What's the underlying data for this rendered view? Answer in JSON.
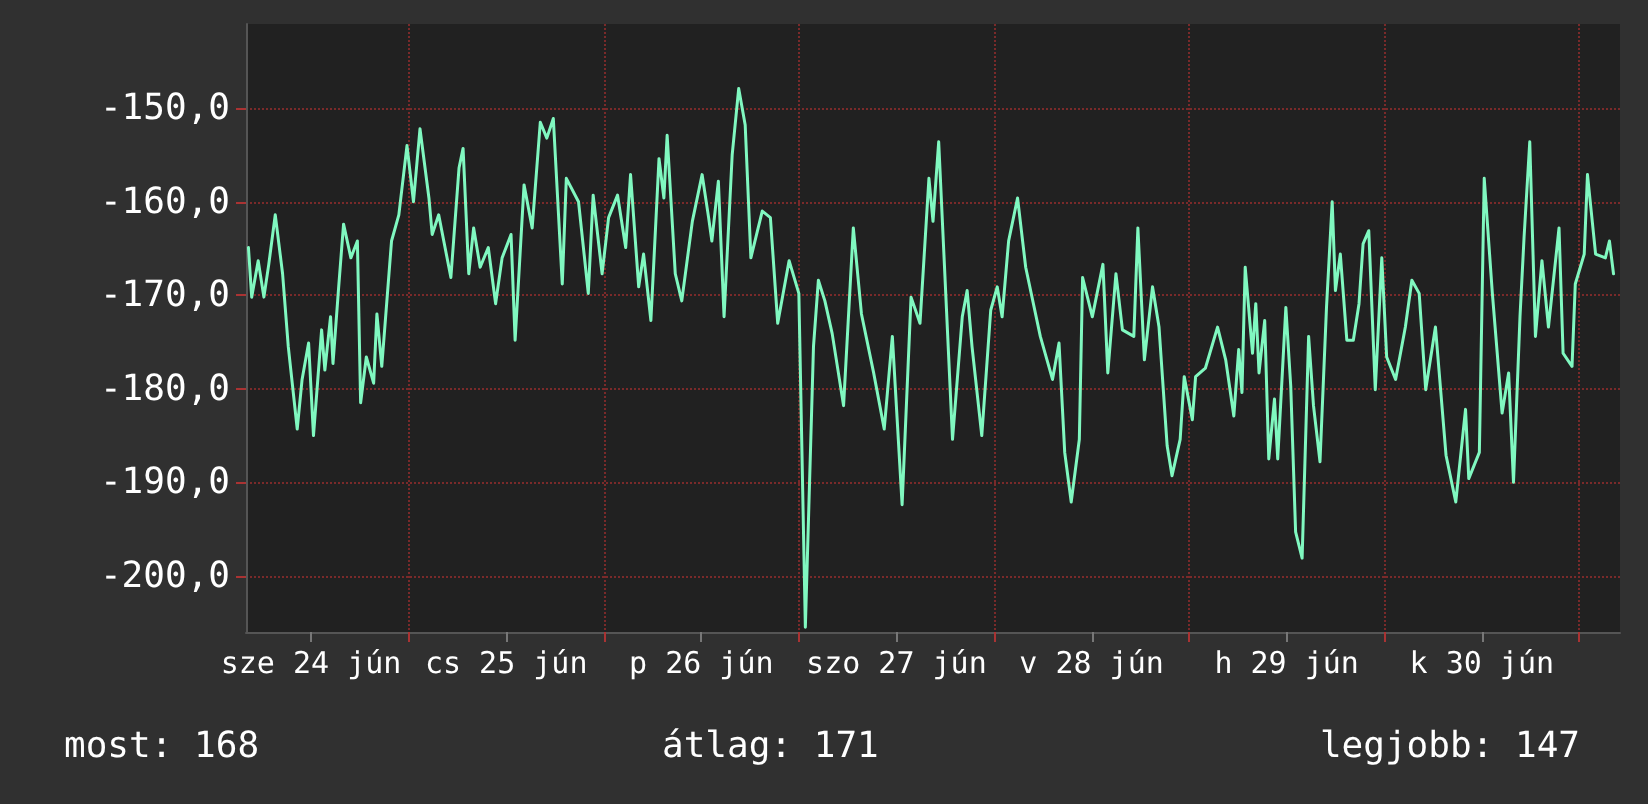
{
  "chart_data": {
    "type": "line",
    "annotations": [
      "most: 168",
      "átlag: 171",
      "legjobb: 147"
    ],
    "xlim": [
      "--06-24T04:00",
      "--07-01T05:00"
    ],
    "ylim": [
      -206,
      -141
    ],
    "xticks": [
      {
        "value": "--06-24T12:00",
        "label": "sze 24 jún"
      },
      {
        "value": "--06-25T00:00",
        "label": null
      },
      {
        "value": "--06-25T12:00",
        "label": "cs 25 jún"
      },
      {
        "value": "--06-26T00:00",
        "label": null
      },
      {
        "value": "--06-26T12:00",
        "label": "p 26 jún"
      },
      {
        "value": "--06-27T00:00",
        "label": null
      },
      {
        "value": "--06-27T12:00",
        "label": "szo 27 jún"
      },
      {
        "value": "--06-28T00:00",
        "label": null
      },
      {
        "value": "--06-28T12:00",
        "label": "v 28 jún"
      },
      {
        "value": "--06-29T00:00",
        "label": null
      },
      {
        "value": "--06-29T12:00",
        "label": "h 29 jún"
      },
      {
        "value": "--06-30T00:00",
        "label": null
      },
      {
        "value": "--06-30T12:00",
        "label": "k 30 jún"
      },
      {
        "value": "--07-01T00:00",
        "label": null
      }
    ],
    "yticks": [
      {
        "value": -150,
        "label": "-150,0"
      },
      {
        "value": -160,
        "label": "-160,0"
      },
      {
        "value": -170,
        "label": "-170,0"
      },
      {
        "value": -180,
        "label": "-180,0"
      },
      {
        "value": -190,
        "label": "-190,0"
      },
      {
        "value": -200,
        "label": "-200,0"
      }
    ],
    "grid": true,
    "marker": "none",
    "line_style": "solid",
    "series": [
      {
        "color": "#80f8c0",
        "x": [
          "--06-24T04:18",
          "--06-24T04:42",
          "--06-24T05:30",
          "--06-24T06:12",
          "--06-24T06:48",
          "--06-24T07:36",
          "--06-24T08:30",
          "--06-24T09:12",
          "--06-24T10:18",
          "--06-24T10:54",
          "--06-24T11:42",
          "--06-24T12:18",
          "--06-24T13:18",
          "--06-24T13:42",
          "--06-24T14:24",
          "--06-24T14:42",
          "--06-24T15:24",
          "--06-24T16:00",
          "--06-24T16:54",
          "--06-24T17:42",
          "--06-24T18:06",
          "--06-24T18:48",
          "--06-24T19:42",
          "--06-24T20:06",
          "--06-24T20:42",
          "--06-24T21:54",
          "--06-24T22:48",
          "--06-24T23:48",
          "--06-25T00:36",
          "--06-25T01:24",
          "--06-25T02:30",
          "--06-25T02:54",
          "--06-25T03:42",
          "--06-25T05:12",
          "--06-25T06:12",
          "--06-25T06:42",
          "--06-25T07:24",
          "--06-25T08:00",
          "--06-25T08:48",
          "--06-25T09:48",
          "--06-25T10:42",
          "--06-25T11:30",
          "--06-25T12:36",
          "--06-25T13:06",
          "--06-25T14:12",
          "--06-25T15:12",
          "--06-25T16:12",
          "--06-25T17:00",
          "--06-25T17:48",
          "--06-25T18:54",
          "--06-25T19:24",
          "--06-25T20:54",
          "--06-25T22:06",
          "--06-25T22:42",
          "--06-25T23:48",
          "--06-26T00:36",
          "--06-26T01:42",
          "--06-26T02:42",
          "--06-26T03:18",
          "--06-26T04:18",
          "--06-26T04:54",
          "--06-26T05:48",
          "--06-26T06:48",
          "--06-26T07:24",
          "--06-26T07:48",
          "--06-26T08:48",
          "--06-26T09:36",
          "--06-26T10:54",
          "--06-26T12:06",
          "--06-26T12:54",
          "--06-26T13:18",
          "--06-26T14:06",
          "--06-26T14:48",
          "--06-26T15:48",
          "--06-26T16:36",
          "--06-26T17:24",
          "--06-26T18:06",
          "--06-26T19:30",
          "--06-26T20:30",
          "--06-26T21:24",
          "--06-26T22:48",
          "--06-27T00:00",
          "--06-27T00:48",
          "--06-27T01:48",
          "--06-27T02:24",
          "--06-27T03:12",
          "--06-27T04:06",
          "--06-27T05:30",
          "--06-27T06:42",
          "--06-27T07:42",
          "--06-27T09:12",
          "--06-27T10:30",
          "--06-27T11:30",
          "--06-27T12:42",
          "--06-27T13:48",
          "--06-27T14:54",
          "--06-27T16:00",
          "--06-27T16:30",
          "--06-27T17:12",
          "--06-27T18:54",
          "--06-27T20:06",
          "--06-27T20:42",
          "--06-27T21:18",
          "--06-27T22:30",
          "--06-27T23:36",
          "--06-28T00:24",
          "--06-28T01:00",
          "--06-28T01:48",
          "--06-28T02:54",
          "--06-28T03:54",
          "--06-28T05:42",
          "--06-28T07:12",
          "--06-28T08:00",
          "--06-28T08:42",
          "--06-28T09:30",
          "--06-28T10:30",
          "--06-28T10:54",
          "--06-28T12:06",
          "--06-28T13:24",
          "--06-28T14:00",
          "--06-28T15:00",
          "--06-28T15:48",
          "--06-28T17:12",
          "--06-28T17:42",
          "--06-28T18:30",
          "--06-28T19:30",
          "--06-28T20:18",
          "--06-28T21:18",
          "--06-28T21:54",
          "--06-28T22:54",
          "--06-28T23:24",
          "--06-29T00:24",
          "--06-29T00:48",
          "--06-29T02:00",
          "--06-29T03:30",
          "--06-29T04:30",
          "--06-29T05:30",
          "--06-29T06:06",
          "--06-29T06:30",
          "--06-29T06:54",
          "--06-29T07:48",
          "--06-29T08:12",
          "--06-29T08:36",
          "--06-29T09:18",
          "--06-29T09:48",
          "--06-29T10:30",
          "--06-29T10:54",
          "--06-29T11:54",
          "--06-29T12:30",
          "--06-29T13:06",
          "--06-29T13:54",
          "--06-29T14:42",
          "--06-29T15:18",
          "--06-29T16:06",
          "--06-29T16:54",
          "--06-29T17:36",
          "--06-29T18:00",
          "--06-29T18:36",
          "--06-29T19:24",
          "--06-29T20:12",
          "--06-29T20:54",
          "--06-29T21:24",
          "--06-29T22:06",
          "--06-29T22:54",
          "--06-29T23:42",
          "--06-30T00:18",
          "--06-30T01:24",
          "--06-30T02:36",
          "--06-30T03:24",
          "--06-30T04:18",
          "--06-30T05:06",
          "--06-30T06:18",
          "--06-30T07:36",
          "--06-30T08:48",
          "--06-30T10:00",
          "--06-30T10:24",
          "--06-30T11:42",
          "--06-30T12:18",
          "--06-30T13:18",
          "--06-30T14:30",
          "--06-30T15:18",
          "--06-30T15:54",
          "--06-30T16:42",
          "--06-30T17:12",
          "--06-30T17:54",
          "--06-30T18:36",
          "--06-30T19:24",
          "--06-30T20:12",
          "--06-30T21:30",
          "--06-30T22:00",
          "--06-30T23:06",
          "--06-30T23:30",
          "--07-01T00:36",
          "--07-01T01:00",
          "--07-01T02:00",
          "--07-01T03:12",
          "--07-01T03:42",
          "--07-01T04:12"
        ],
        "values": [
          -164.9,
          -170.2,
          -166.3,
          -170.2,
          -166.7,
          -161.4,
          -167.7,
          -175.5,
          -184.3,
          -179.0,
          -175.1,
          -185.0,
          -173.7,
          -178.0,
          -172.3,
          -177.3,
          -169.1,
          -162.4,
          -166.0,
          -164.2,
          -181.5,
          -176.6,
          -179.4,
          -172.0,
          -177.6,
          -164.2,
          -161.4,
          -154.0,
          -160.0,
          -152.2,
          -159.6,
          -163.5,
          -161.4,
          -168.1,
          -156.4,
          -154.3,
          -167.7,
          -162.8,
          -167.0,
          -164.9,
          -170.9,
          -166.0,
          -163.5,
          -174.8,
          -158.2,
          -162.8,
          -151.5,
          -153.2,
          -151.1,
          -168.8,
          -157.5,
          -160.0,
          -169.8,
          -159.3,
          -167.7,
          -161.7,
          -159.3,
          -164.9,
          -157.1,
          -169.1,
          -165.6,
          -172.7,
          -155.4,
          -159.6,
          -152.9,
          -167.7,
          -170.6,
          -162.1,
          -157.1,
          -161.7,
          -164.2,
          -157.8,
          -172.3,
          -155.0,
          -147.9,
          -151.8,
          -166.0,
          -161.0,
          -161.7,
          -173.0,
          -166.3,
          -169.8,
          -205.5,
          -175.5,
          -168.4,
          -170.6,
          -174.1,
          -181.8,
          -162.8,
          -172.0,
          -178.3,
          -184.3,
          -174.4,
          -192.4,
          -170.2,
          -173.0,
          -157.5,
          -162.1,
          -153.6,
          -185.4,
          -172.3,
          -169.5,
          -175.5,
          -185.0,
          -171.6,
          -169.1,
          -172.3,
          -164.2,
          -159.6,
          -167.0,
          -174.4,
          -179.0,
          -175.1,
          -186.8,
          -192.1,
          -185.4,
          -168.1,
          -172.3,
          -166.7,
          -178.3,
          -167.7,
          -173.7,
          -174.4,
          -162.8,
          -176.9,
          -169.1,
          -173.4,
          -186.1,
          -189.3,
          -185.4,
          -178.7,
          -183.3,
          -178.7,
          -177.8,
          -173.4,
          -176.9,
          -182.9,
          -175.8,
          -180.4,
          -167.0,
          -176.2,
          -170.9,
          -178.3,
          -172.7,
          -187.5,
          -181.1,
          -187.5,
          -171.3,
          -179.7,
          -195.3,
          -198.1,
          -174.4,
          -181.8,
          -187.8,
          -171.3,
          -160.0,
          -169.5,
          -165.6,
          -174.8,
          -174.8,
          -170.9,
          -164.5,
          -163.1,
          -180.1,
          -166.0,
          -176.6,
          -179.0,
          -173.4,
          -168.4,
          -169.8,
          -180.1,
          -173.4,
          -187.1,
          -192.1,
          -182.2,
          -189.6,
          -186.8,
          -157.5,
          -169.8,
          -182.6,
          -178.3,
          -190.0,
          -172.3,
          -163.8,
          -153.6,
          -174.4,
          -166.3,
          -173.4,
          -162.8,
          -176.2,
          -177.6,
          -168.8,
          -165.6,
          -157.1,
          -165.6,
          -166.0,
          -164.2,
          -167.7
        ]
      }
    ]
  }
}
